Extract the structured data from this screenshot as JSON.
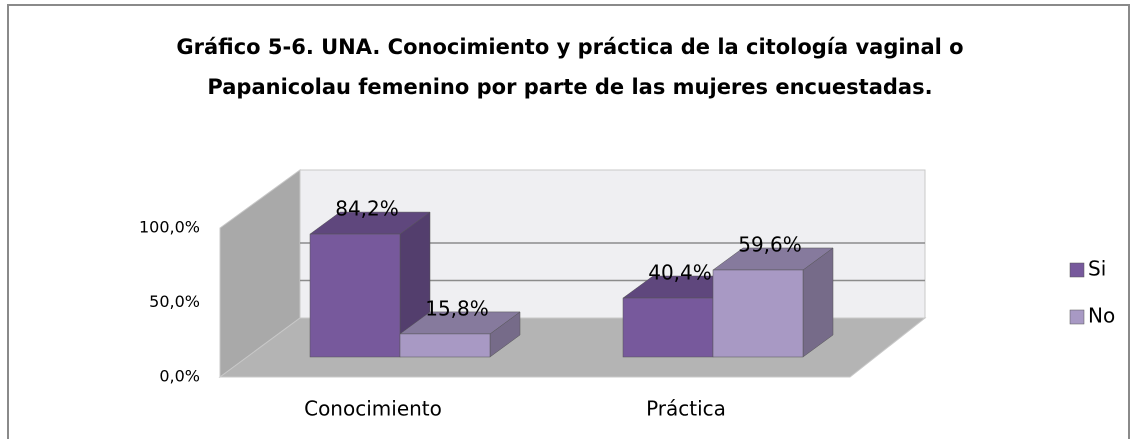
{
  "chart_data": {
    "type": "bar3d",
    "title": [
      "Gráfico 5-6. UNA. Conocimiento y práctica de la citología vaginal o",
      "Papanicolau femenino  por parte de las mujeres encuestadas."
    ],
    "categories": [
      "Conocimiento",
      "Práctica"
    ],
    "series": [
      {
        "name": "Si",
        "color": "#77599c",
        "values": [
          84.2,
          40.4
        ],
        "value_labels": [
          "84,2%",
          "40,4%"
        ]
      },
      {
        "name": "No",
        "color": "#a899c4",
        "values": [
          15.8,
          59.6
        ],
        "value_labels": [
          "15,8%",
          "59,6%"
        ]
      }
    ],
    "ylim": [
      0,
      100
    ],
    "yticks": [
      {
        "value": 0,
        "label": "0,0%"
      },
      {
        "value": 50,
        "label": "50,0%"
      },
      {
        "value": 100,
        "label": "100,0%"
      }
    ],
    "grid": true,
    "legend": "right"
  }
}
